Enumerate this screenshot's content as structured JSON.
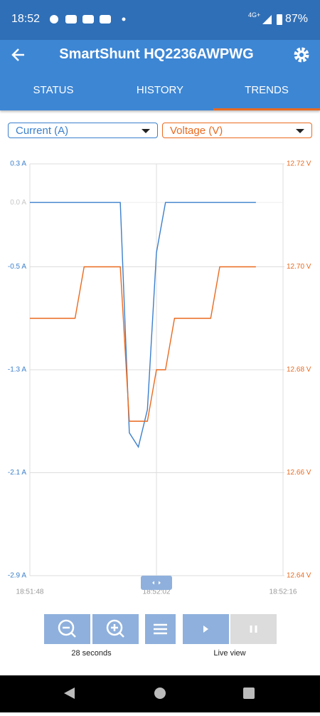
{
  "status_bar": {
    "time": "18:52",
    "network": "4G+",
    "battery": "87%"
  },
  "app_bar": {
    "title": "SmartShunt HQ2236AWPWG"
  },
  "tabs": [
    "STATUS",
    "HISTORY",
    "TRENDS"
  ],
  "chart_data": {
    "type": "line",
    "x": [
      "18:51:48",
      "18:51:49",
      "18:51:50",
      "18:51:51",
      "18:51:52",
      "18:51:53",
      "18:51:54",
      "18:51:55",
      "18:51:56",
      "18:51:57",
      "18:51:58",
      "18:51:59",
      "18:52:00",
      "18:52:01",
      "18:52:02",
      "18:52:03",
      "18:52:04",
      "18:52:05",
      "18:52:06",
      "18:52:07",
      "18:52:08",
      "18:52:09",
      "18:52:10",
      "18:52:11",
      "18:52:12",
      "18:52:13"
    ],
    "series": [
      {
        "name": "Current (A)",
        "color": "#3b7fcc",
        "values": [
          0,
          0,
          0,
          0,
          0,
          0,
          0,
          0,
          0,
          0,
          0,
          -1.79,
          -1.9,
          -1.61,
          -0.39,
          0,
          0,
          0,
          0,
          0,
          0,
          0,
          0,
          0,
          0,
          0
        ]
      },
      {
        "name": "Voltage (V)",
        "color": "#ea6a1f",
        "axis": "y2",
        "values": [
          12.69,
          12.69,
          12.69,
          12.69,
          12.69,
          12.69,
          12.7,
          12.7,
          12.7,
          12.7,
          12.7,
          12.67,
          12.67,
          12.67,
          12.68,
          12.68,
          12.69,
          12.69,
          12.69,
          12.69,
          12.69,
          12.7,
          12.7,
          12.7,
          12.7,
          12.7
        ]
      }
    ],
    "xlim": [
      "18:51:48",
      "18:52:16"
    ],
    "xticks": [
      "18:51:48",
      "18:52:02",
      "18:52:16"
    ],
    "ylim": [
      -2.9,
      0.3
    ],
    "yticks": [
      {
        "value": 0.3,
        "label": "0.3 A"
      },
      {
        "value": 0,
        "label": "0.0 A"
      },
      {
        "value": -0.5,
        "label": "-0.5 A"
      },
      {
        "value": -1.3,
        "label": "-1.3 A"
      },
      {
        "value": -2.1,
        "label": "-2.1 A"
      },
      {
        "value": -2.9,
        "label": "-2.9 A"
      }
    ],
    "y2lim": [
      12.64,
      12.72
    ],
    "y2ticks": [
      {
        "value": 12.72,
        "label": "12.72 V"
      },
      {
        "value": 12.7,
        "label": "12.70 V"
      },
      {
        "value": 12.68,
        "label": "12.68 V"
      },
      {
        "value": 12.66,
        "label": "12.66 V"
      },
      {
        "value": 12.64,
        "label": "12.64 V"
      }
    ],
    "grid": true
  },
  "controls": {
    "zoom_label": "28 seconds",
    "live_label": "Live view"
  }
}
